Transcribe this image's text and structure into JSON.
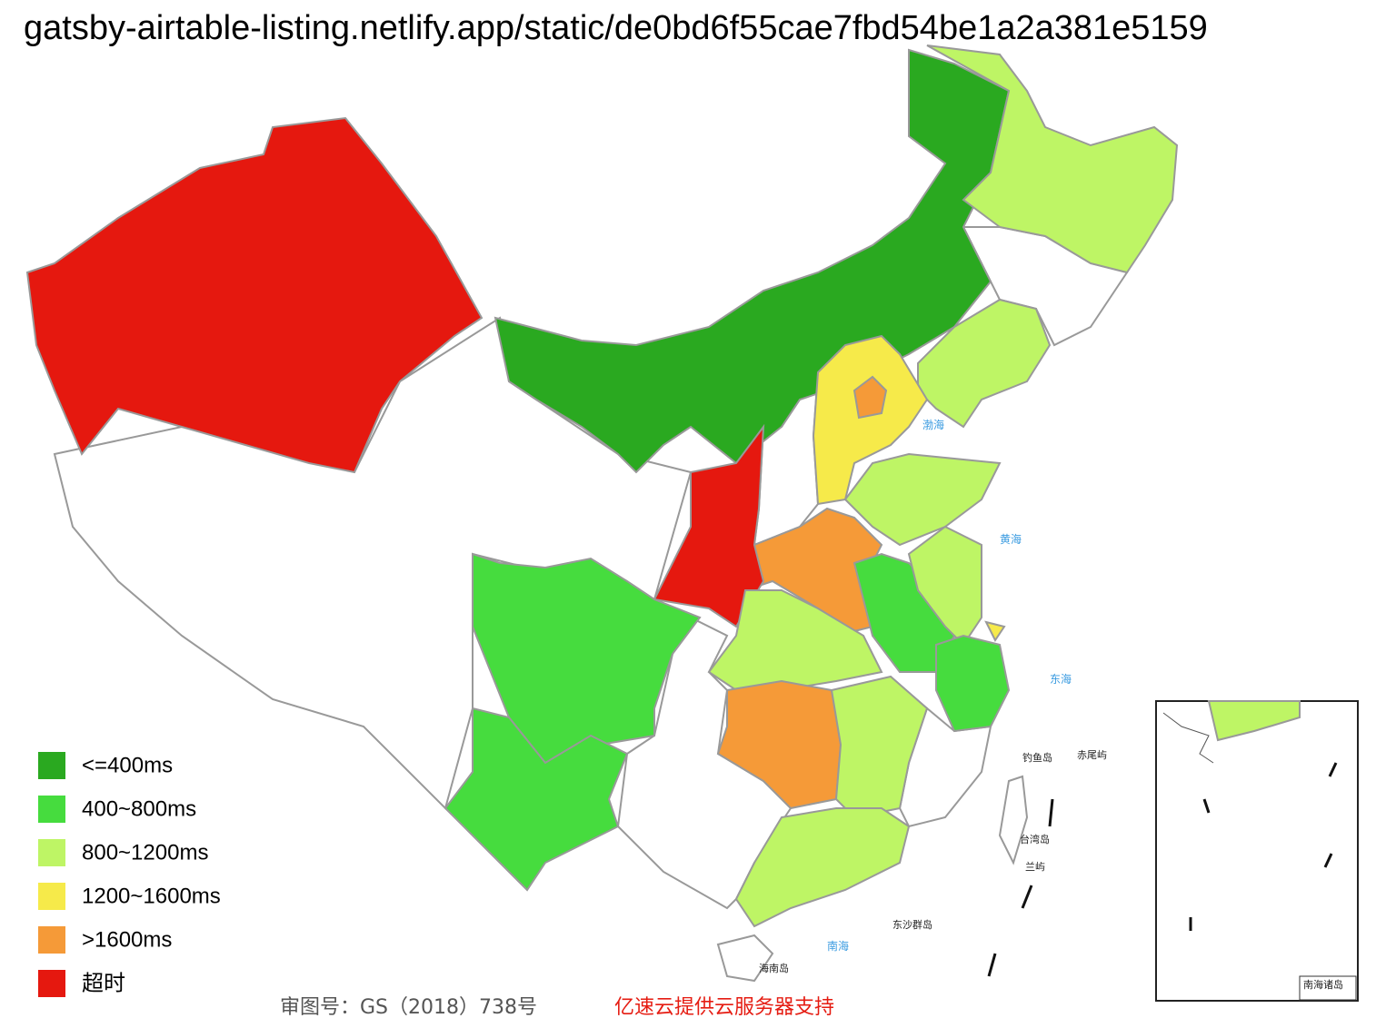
{
  "header": {
    "url": "gatsby-airtable-listing.netlify.app/static/de0bd6f55cae7fbd54be1a2a381e5159"
  },
  "legend": [
    {
      "label": "<=400ms",
      "color": "#2aa920"
    },
    {
      "label": "400~800ms",
      "color": "#46dc3e"
    },
    {
      "label": "800~1200ms",
      "color": "#bef565"
    },
    {
      "label": "1200~1600ms",
      "color": "#f6ea4a"
    },
    {
      "label": ">1600ms",
      "color": "#f59a38"
    },
    {
      "label": "超时",
      "color": "#e5180f"
    }
  ],
  "map_labels": {
    "bohai": "渤海",
    "huanghai": "黄海",
    "donghai": "东海",
    "diaoyu": "钓鱼岛",
    "chiwei": "赤尾屿",
    "taiwan": "台湾岛",
    "lanyu": "兰屿",
    "dongsha": "东沙群岛",
    "hainan": "海南岛",
    "nanhai": "南海",
    "inset_title": "南海诸岛"
  },
  "footer": {
    "approval": "审图号：GS（2018）738号",
    "sponsor": "亿速云提供云服务器支持"
  }
}
